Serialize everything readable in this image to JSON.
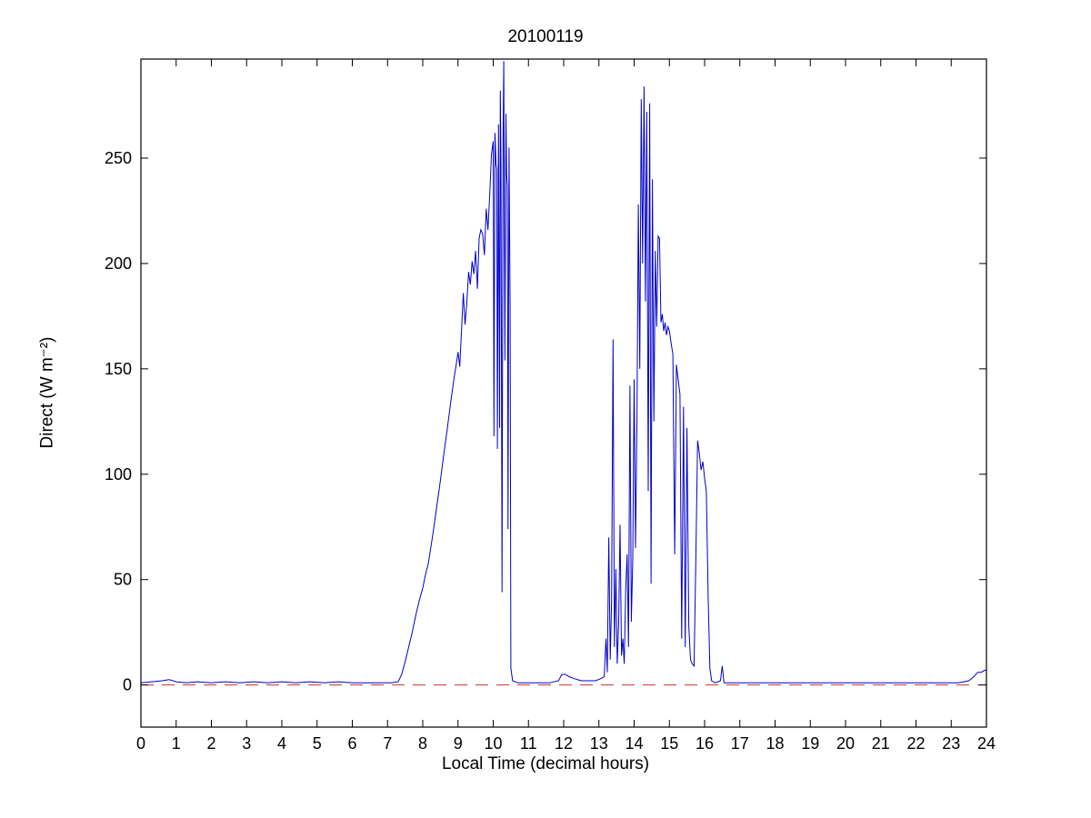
{
  "figure": {
    "background": "#ffffff",
    "axis_color": "#000000"
  },
  "chart_data": {
    "type": "line",
    "title": "20100119",
    "xlabel": "Local Time (decimal hours)",
    "ylabel": "Direct (W m⁻²)",
    "xlim": [
      0,
      24
    ],
    "ylim": [
      -20,
      297
    ],
    "xticks": [
      0,
      1,
      2,
      3,
      4,
      5,
      6,
      7,
      8,
      9,
      10,
      11,
      12,
      13,
      14,
      15,
      16,
      17,
      18,
      19,
      20,
      21,
      22,
      23,
      24
    ],
    "yticks": [
      0,
      50,
      100,
      150,
      200,
      250
    ],
    "grid": false,
    "legend": null,
    "series": [
      {
        "name": "direct-irradiance",
        "color": "#0000cc",
        "style": "solid",
        "points": [
          [
            0,
            1
          ],
          [
            0.3,
            1.5
          ],
          [
            0.6,
            2
          ],
          [
            0.8,
            2.5
          ],
          [
            1,
            1.5
          ],
          [
            1.3,
            1
          ],
          [
            1.6,
            1.5
          ],
          [
            2,
            1
          ],
          [
            2.4,
            1.5
          ],
          [
            2.8,
            1
          ],
          [
            3.2,
            1.5
          ],
          [
            3.6,
            1
          ],
          [
            4,
            1.5
          ],
          [
            4.4,
            1
          ],
          [
            4.8,
            1.5
          ],
          [
            5.2,
            1
          ],
          [
            5.6,
            1.5
          ],
          [
            6,
            1
          ],
          [
            6.4,
            1
          ],
          [
            6.8,
            1
          ],
          [
            7.1,
            1
          ],
          [
            7.3,
            1.5
          ],
          [
            7.4,
            5
          ],
          [
            7.5,
            11
          ],
          [
            7.6,
            18
          ],
          [
            7.7,
            25
          ],
          [
            7.8,
            33
          ],
          [
            7.9,
            40
          ],
          [
            8,
            46
          ],
          [
            8.05,
            50
          ],
          [
            8.1,
            54
          ],
          [
            8.15,
            57
          ],
          [
            8.2,
            62
          ],
          [
            8.3,
            73
          ],
          [
            8.4,
            85
          ],
          [
            8.5,
            97
          ],
          [
            8.6,
            110
          ],
          [
            8.7,
            122
          ],
          [
            8.8,
            135
          ],
          [
            8.9,
            147
          ],
          [
            8.95,
            152
          ],
          [
            9,
            158
          ],
          [
            9.05,
            151
          ],
          [
            9.1,
            168
          ],
          [
            9.15,
            186
          ],
          [
            9.2,
            171
          ],
          [
            9.25,
            181
          ],
          [
            9.3,
            196
          ],
          [
            9.35,
            190
          ],
          [
            9.4,
            201
          ],
          [
            9.45,
            195
          ],
          [
            9.5,
            206
          ],
          [
            9.55,
            188
          ],
          [
            9.6,
            212
          ],
          [
            9.65,
            216
          ],
          [
            9.7,
            214
          ],
          [
            9.75,
            204
          ],
          [
            9.8,
            226
          ],
          [
            9.85,
            216
          ],
          [
            9.9,
            232
          ],
          [
            9.95,
            252
          ],
          [
            10,
            258
          ],
          [
            10.02,
            118
          ],
          [
            10.05,
            262
          ],
          [
            10.08,
            247
          ],
          [
            10.1,
            245
          ],
          [
            10.12,
            112
          ],
          [
            10.15,
            266
          ],
          [
            10.18,
            122
          ],
          [
            10.2,
            282
          ],
          [
            10.22,
            249
          ],
          [
            10.25,
            44
          ],
          [
            10.28,
            259
          ],
          [
            10.3,
            296
          ],
          [
            10.33,
            154
          ],
          [
            10.36,
            271
          ],
          [
            10.38,
            243
          ],
          [
            10.4,
            237
          ],
          [
            10.42,
            74
          ],
          [
            10.45,
            255
          ],
          [
            10.48,
            178
          ],
          [
            10.5,
            8
          ],
          [
            10.55,
            2
          ],
          [
            10.7,
            1
          ],
          [
            11,
            1
          ],
          [
            11.3,
            1
          ],
          [
            11.6,
            1
          ],
          [
            11.85,
            2
          ],
          [
            11.95,
            5
          ],
          [
            12.05,
            5
          ],
          [
            12.15,
            4
          ],
          [
            12.3,
            3
          ],
          [
            12.5,
            2
          ],
          [
            12.7,
            2
          ],
          [
            12.9,
            2
          ],
          [
            13.05,
            3
          ],
          [
            13.15,
            4
          ],
          [
            13.2,
            22
          ],
          [
            13.24,
            6
          ],
          [
            13.28,
            70
          ],
          [
            13.32,
            12
          ],
          [
            13.36,
            40
          ],
          [
            13.4,
            164
          ],
          [
            13.44,
            18
          ],
          [
            13.48,
            55
          ],
          [
            13.52,
            10
          ],
          [
            13.56,
            30
          ],
          [
            13.6,
            76
          ],
          [
            13.64,
            14
          ],
          [
            13.68,
            22
          ],
          [
            13.72,
            10
          ],
          [
            13.76,
            45
          ],
          [
            13.8,
            62
          ],
          [
            13.84,
            18
          ],
          [
            13.88,
            142
          ],
          [
            13.92,
            30
          ],
          [
            13.96,
            60
          ],
          [
            14,
            145
          ],
          [
            14.04,
            65
          ],
          [
            14.08,
            125
          ],
          [
            14.12,
            228
          ],
          [
            14.16,
            150
          ],
          [
            14.2,
            278
          ],
          [
            14.24,
            200
          ],
          [
            14.28,
            284
          ],
          [
            14.32,
            182
          ],
          [
            14.36,
            272
          ],
          [
            14.4,
            92
          ],
          [
            14.44,
            276
          ],
          [
            14.48,
            48
          ],
          [
            14.52,
            240
          ],
          [
            14.56,
            125
          ],
          [
            14.6,
            206
          ],
          [
            14.64,
            170
          ],
          [
            14.68,
            213
          ],
          [
            14.72,
            212
          ],
          [
            14.76,
            172
          ],
          [
            14.8,
            176
          ],
          [
            14.84,
            168
          ],
          [
            14.88,
            172
          ],
          [
            14.92,
            166
          ],
          [
            14.96,
            170
          ],
          [
            15,
            168
          ],
          [
            15.05,
            162
          ],
          [
            15.1,
            157
          ],
          [
            15.15,
            62
          ],
          [
            15.2,
            152
          ],
          [
            15.25,
            145
          ],
          [
            15.3,
            138
          ],
          [
            15.35,
            22
          ],
          [
            15.4,
            132
          ],
          [
            15.45,
            18
          ],
          [
            15.5,
            122
          ],
          [
            15.55,
            28
          ],
          [
            15.6,
            12
          ],
          [
            15.65,
            10
          ],
          [
            15.7,
            9
          ],
          [
            15.75,
            58
          ],
          [
            15.8,
            116
          ],
          [
            15.85,
            110
          ],
          [
            15.9,
            102
          ],
          [
            15.95,
            106
          ],
          [
            16,
            98
          ],
          [
            16.05,
            92
          ],
          [
            16.1,
            42
          ],
          [
            16.15,
            8
          ],
          [
            16.2,
            2
          ],
          [
            16.3,
            1
          ],
          [
            16.45,
            2
          ],
          [
            16.5,
            9
          ],
          [
            16.55,
            1
          ],
          [
            16.8,
            1
          ],
          [
            17.2,
            1
          ],
          [
            17.6,
            1
          ],
          [
            18,
            1
          ],
          [
            18.4,
            1
          ],
          [
            18.8,
            1
          ],
          [
            19.2,
            1
          ],
          [
            19.6,
            1
          ],
          [
            20,
            1
          ],
          [
            20.4,
            1
          ],
          [
            20.8,
            1
          ],
          [
            21.2,
            1
          ],
          [
            21.6,
            1
          ],
          [
            22,
            1
          ],
          [
            22.4,
            1
          ],
          [
            22.8,
            1
          ],
          [
            23.2,
            1
          ],
          [
            23.5,
            2
          ],
          [
            23.65,
            4
          ],
          [
            23.75,
            6
          ],
          [
            23.85,
            6
          ],
          [
            23.95,
            7
          ],
          [
            24,
            7
          ]
        ]
      },
      {
        "name": "zero-reference",
        "color": "#cc3333",
        "style": "dashed",
        "points": [
          [
            0,
            0
          ],
          [
            24,
            0
          ]
        ]
      }
    ]
  }
}
